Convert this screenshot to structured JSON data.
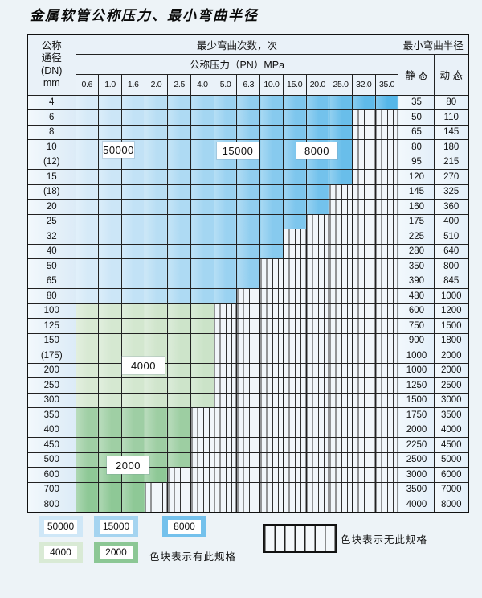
{
  "title": "金属软管公称压力、最小弯曲半径",
  "table": {
    "header": {
      "dn_label_lines": [
        "公称",
        "通径",
        "(DN)",
        "mm"
      ],
      "bend_cycles_label": "最少弯曲次数，次",
      "pressure_label": "公称压力（PN）MPa",
      "radius_label": "最小弯曲半径",
      "static_label": "静 态",
      "dynamic_label": "动 态",
      "pressure_columns": [
        "0.6",
        "1.0",
        "1.6",
        "2.0",
        "2.5",
        "4.0",
        "5.0",
        "6.3",
        "10.0",
        "15.0",
        "20.0",
        "25.0",
        "32.0",
        "35.0"
      ]
    },
    "rows": [
      {
        "dn": "4",
        "zone": "blue",
        "tone": "",
        "max_pn": "35.0",
        "static": "35",
        "dynamic": "80"
      },
      {
        "dn": "6",
        "zone": "blue",
        "tone": "",
        "max_pn": "25.0",
        "static": "50",
        "dynamic": "110"
      },
      {
        "dn": "8",
        "zone": "blue",
        "tone": "",
        "max_pn": "25.0",
        "static": "65",
        "dynamic": "145"
      },
      {
        "dn": "10",
        "zone": "blue",
        "tone": "",
        "max_pn": "25.0",
        "static": "80",
        "dynamic": "180"
      },
      {
        "dn": "(12)",
        "zone": "blue",
        "tone": "",
        "max_pn": "25.0",
        "static": "95",
        "dynamic": "215"
      },
      {
        "dn": "15",
        "zone": "blue",
        "tone": "",
        "max_pn": "25.0",
        "static": "120",
        "dynamic": "270"
      },
      {
        "dn": "(18)",
        "zone": "blue",
        "tone": "",
        "max_pn": "20.0",
        "static": "145",
        "dynamic": "325"
      },
      {
        "dn": "20",
        "zone": "blue",
        "tone": "",
        "max_pn": "20.0",
        "static": "160",
        "dynamic": "360"
      },
      {
        "dn": "25",
        "zone": "blue",
        "tone": "",
        "max_pn": "15.0",
        "static": "175",
        "dynamic": "400"
      },
      {
        "dn": "32",
        "zone": "blue",
        "tone": "",
        "max_pn": "10.0",
        "static": "225",
        "dynamic": "510"
      },
      {
        "dn": "40",
        "zone": "blue",
        "tone": "",
        "max_pn": "10.0",
        "static": "280",
        "dynamic": "640"
      },
      {
        "dn": "50",
        "zone": "blue",
        "tone": "",
        "max_pn": "6.3",
        "static": "350",
        "dynamic": "800"
      },
      {
        "dn": "65",
        "zone": "blue",
        "tone": "",
        "max_pn": "6.3",
        "static": "390",
        "dynamic": "845"
      },
      {
        "dn": "80",
        "zone": "blue",
        "tone": "",
        "max_pn": "5.0",
        "static": "480",
        "dynamic": "1000"
      },
      {
        "dn": "100",
        "zone": "green",
        "tone": "light",
        "max_pn": "4.0",
        "static": "600",
        "dynamic": "1200"
      },
      {
        "dn": "125",
        "zone": "green",
        "tone": "light",
        "max_pn": "4.0",
        "static": "750",
        "dynamic": "1500"
      },
      {
        "dn": "150",
        "zone": "green",
        "tone": "light",
        "max_pn": "4.0",
        "static": "900",
        "dynamic": "1800"
      },
      {
        "dn": "(175)",
        "zone": "green",
        "tone": "light",
        "max_pn": "4.0",
        "static": "1000",
        "dynamic": "2000"
      },
      {
        "dn": "200",
        "zone": "green",
        "tone": "light",
        "max_pn": "4.0",
        "static": "1000",
        "dynamic": "2000"
      },
      {
        "dn": "250",
        "zone": "green",
        "tone": "light",
        "max_pn": "4.0",
        "static": "1250",
        "dynamic": "2500"
      },
      {
        "dn": "300",
        "zone": "green",
        "tone": "light",
        "max_pn": "4.0",
        "static": "1500",
        "dynamic": "3000"
      },
      {
        "dn": "350",
        "zone": "green",
        "tone": "medium",
        "max_pn": "2.5",
        "static": "1750",
        "dynamic": "3500"
      },
      {
        "dn": "400",
        "zone": "green",
        "tone": "medium",
        "max_pn": "2.5",
        "static": "2000",
        "dynamic": "4000"
      },
      {
        "dn": "450",
        "zone": "green",
        "tone": "medium",
        "max_pn": "2.5",
        "static": "2250",
        "dynamic": "4500"
      },
      {
        "dn": "500",
        "zone": "green",
        "tone": "medium",
        "max_pn": "2.5",
        "static": "2500",
        "dynamic": "5000"
      },
      {
        "dn": "600",
        "zone": "green",
        "tone": "dark",
        "max_pn": "2.0",
        "static": "3000",
        "dynamic": "6000"
      },
      {
        "dn": "700",
        "zone": "green",
        "tone": "dark",
        "max_pn": "1.6",
        "static": "3500",
        "dynamic": "7000"
      },
      {
        "dn": "800",
        "zone": "green",
        "tone": "dark",
        "max_pn": "1.6",
        "static": "4000",
        "dynamic": "8000"
      }
    ]
  },
  "zone_labels": {
    "l50000": "50000",
    "l15000": "15000",
    "l8000": "8000",
    "l4000": "4000",
    "l2000": "2000"
  },
  "legend": {
    "swatches": [
      {
        "label": "50000",
        "color": "#cfe7f7"
      },
      {
        "label": "15000",
        "color": "#a5d4f0"
      },
      {
        "label": "8000",
        "color": "#74c1ec"
      },
      {
        "label": "4000",
        "color": "#d9ead5"
      },
      {
        "label": "2000",
        "color": "#8cc795"
      }
    ],
    "has_spec_text": "色块表示有此规格",
    "no_spec_text": "色块表示无此规格"
  },
  "colors": {
    "blue_light": "#d6eaf8",
    "blue_dark": "#55b6e8",
    "green_light": "#d8e9d3",
    "green_medium": "#a0cfa5",
    "green_dark": "#8ec896",
    "hatch_bg": "#f1f6fa",
    "grid_line": "#222222",
    "page_bg": "#edf3f7"
  }
}
